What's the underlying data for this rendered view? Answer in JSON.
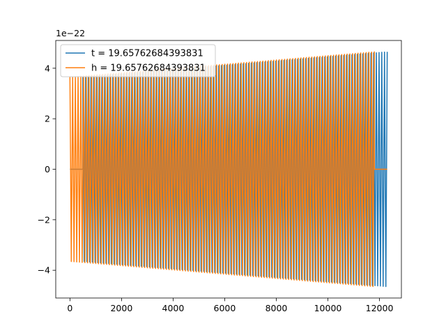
{
  "chart_data": {
    "type": "line",
    "title": "",
    "xlabel": "",
    "ylabel": "",
    "offset_text": "1e−22",
    "xlim": [
      -550,
      12850
    ],
    "ylim": [
      -5.1,
      5.1
    ],
    "y_scale_exponent": -22,
    "x_ticks": [
      0,
      2000,
      4000,
      6000,
      8000,
      10000,
      12000
    ],
    "x_tick_labels": [
      "0",
      "2000",
      "4000",
      "6000",
      "8000",
      "10000",
      "12000"
    ],
    "y_ticks": [
      -4,
      -2,
      0,
      2,
      4
    ],
    "y_tick_labels": [
      "−4",
      "−2",
      "0",
      "2",
      "4"
    ],
    "grid": false,
    "legend_position": "top-left",
    "series": [
      {
        "name": "t = 19.65762684393831",
        "color": "#1f77b4",
        "signal_start": 500,
        "signal_end": 12300,
        "amplitude_start": 3.65,
        "amplitude_end": 4.65,
        "cycles": 112,
        "baseline_before": 0,
        "baseline_after": null
      },
      {
        "name": "h = 19.65762684393831",
        "color": "#ff7f0e",
        "signal_start": 0,
        "signal_end": 11800,
        "amplitude_start": 3.65,
        "amplitude_end": 4.65,
        "cycles": 112,
        "baseline_before": null,
        "baseline_after": 0,
        "baseline_after_end": 12300
      }
    ]
  }
}
